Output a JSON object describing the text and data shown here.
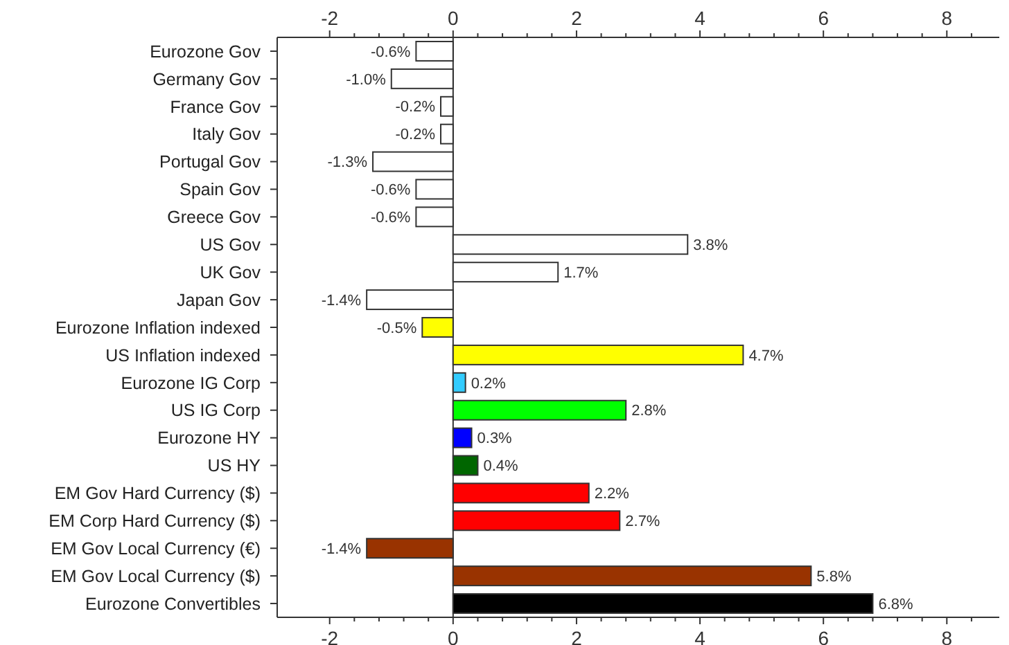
{
  "chart_data": {
    "type": "bar",
    "orientation": "horizontal",
    "categories": [
      "Eurozone Gov",
      "Germany Gov",
      "France Gov",
      "Italy Gov",
      "Portugal Gov",
      "Spain Gov",
      "Greece Gov",
      "US Gov",
      "UK Gov",
      "Japan Gov",
      "Eurozone Inflation indexed",
      "US Inflation indexed",
      "Eurozone IG Corp",
      "US IG Corp",
      "Eurozone HY",
      "US HY",
      "EM Gov Hard Currency ($)",
      "EM Corp Hard Currency ($)",
      "EM Gov Local Currency (€)",
      "EM Gov Local Currency ($)",
      "Eurozone Convertibles"
    ],
    "values": [
      -0.6,
      -1.0,
      -0.2,
      -0.2,
      -1.3,
      -0.6,
      -0.6,
      3.8,
      1.7,
      -1.4,
      -0.5,
      4.7,
      0.2,
      2.8,
      0.3,
      0.4,
      2.2,
      2.7,
      -1.4,
      5.8,
      6.8
    ],
    "value_labels": [
      "-0.6%",
      "-1.0%",
      "-0.2%",
      "-0.2%",
      "-1.3%",
      "-0.6%",
      "-0.6%",
      "3.8%",
      "1.7%",
      "-1.4%",
      "-0.5%",
      "4.7%",
      "0.2%",
      "2.8%",
      "0.3%",
      "0.4%",
      "2.2%",
      "2.7%",
      "-1.4%",
      "5.8%",
      "6.8%"
    ],
    "colors": [
      "#ffffff",
      "#ffffff",
      "#ffffff",
      "#ffffff",
      "#ffffff",
      "#ffffff",
      "#ffffff",
      "#ffffff",
      "#ffffff",
      "#ffffff",
      "#ffff00",
      "#ffff00",
      "#33ccff",
      "#00ff00",
      "#0000ff",
      "#006600",
      "#ff0000",
      "#ff0000",
      "#993300",
      "#993300",
      "#000000"
    ],
    "xlim": [
      -2.85,
      8.85
    ],
    "xticks": [
      -2,
      {
        "value": -1.6,
        "label": null
      },
      {
        "value": -1.2,
        "label": null
      },
      {
        "value": -0.8,
        "label": null
      },
      {
        "value": -0.4,
        "label": null
      },
      0,
      {
        "value": 0.4,
        "label": null
      },
      {
        "value": 0.8,
        "label": null
      },
      {
        "value": 1.2,
        "label": null
      },
      {
        "value": 1.6,
        "label": null
      },
      2,
      {
        "value": 2.4,
        "label": null
      },
      {
        "value": 2.8,
        "label": null
      },
      {
        "value": 3.2,
        "label": null
      },
      {
        "value": 3.6,
        "label": null
      },
      4,
      {
        "value": 4.4,
        "label": null
      },
      {
        "value": 4.8,
        "label": null
      },
      {
        "value": 5.2,
        "label": null
      },
      {
        "value": 5.6,
        "label": null
      },
      6,
      {
        "value": 6.4,
        "label": null
      },
      {
        "value": 6.8,
        "label": null
      },
      {
        "value": 7.2,
        "label": null
      },
      {
        "value": 7.6,
        "label": null
      },
      8,
      {
        "value": 8.4,
        "label": null
      }
    ],
    "x2lim": [
      -2.85,
      8.85
    ],
    "x2ticks": [
      -2,
      {
        "value": -1.6,
        "label": null
      },
      {
        "value": -1.2,
        "label": null
      },
      {
        "value": -0.8,
        "label": null
      },
      {
        "value": -0.4,
        "label": null
      },
      0,
      {
        "value": 0.4,
        "label": null
      },
      {
        "value": 0.8,
        "label": null
      },
      {
        "value": 1.2,
        "label": null
      },
      {
        "value": 1.6,
        "label": null
      },
      2,
      {
        "value": 2.4,
        "label": null
      },
      {
        "value": 2.8,
        "label": null
      },
      {
        "value": 3.2,
        "label": null
      },
      {
        "value": 3.6,
        "label": null
      },
      4,
      {
        "value": 4.4,
        "label": null
      },
      {
        "value": 4.8,
        "label": null
      },
      {
        "value": 5.2,
        "label": null
      },
      {
        "value": 5.6,
        "label": null
      },
      6,
      {
        "value": 6.4,
        "label": null
      },
      {
        "value": 6.8,
        "label": null
      },
      {
        "value": 7.2,
        "label": null
      },
      {
        "value": 7.6,
        "label": null
      },
      8,
      {
        "value": 8.4,
        "label": null
      }
    ],
    "data_labels": false
  }
}
